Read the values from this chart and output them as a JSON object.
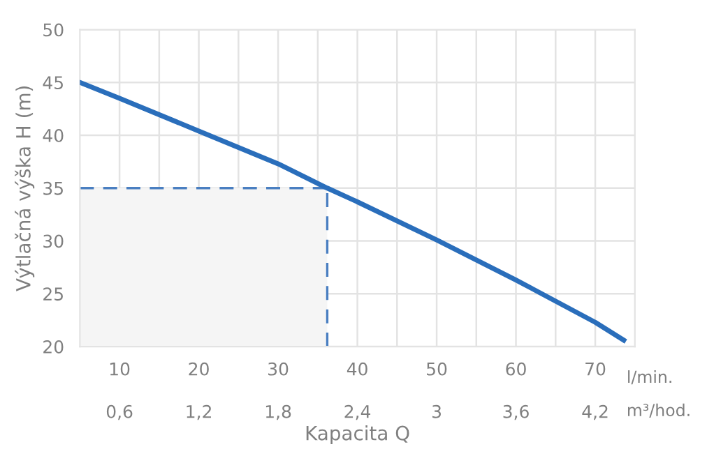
{
  "chart_data": {
    "type": "line",
    "xlabel": "Kapacita Q",
    "ylabel": "Výtlačná výška H (m)",
    "x": [
      5,
      10,
      20,
      30,
      36.2,
      40,
      50,
      60,
      70,
      73.6
    ],
    "series": [
      {
        "color": "#2a6ebb",
        "values": [
          45,
          43.5,
          40.4,
          37.3,
          35,
          33.7,
          30.1,
          26.3,
          22.3,
          20.6
        ]
      }
    ],
    "xlim": [
      5,
      75
    ],
    "xticks": [
      10,
      {
        "value": 15,
        "label": null
      },
      20,
      {
        "value": 25,
        "label": null
      },
      30,
      {
        "value": 35,
        "label": null
      },
      40,
      {
        "value": 45,
        "label": null
      },
      50,
      {
        "value": 55,
        "label": null
      },
      60,
      {
        "value": 65,
        "label": null
      },
      70
    ],
    "x2lim": [
      0.3,
      4.5
    ],
    "x2ticks": [
      {
        "value": 0.6,
        "label": "0,6"
      },
      {
        "value": 1.2,
        "label": "1,2"
      },
      {
        "value": 1.8,
        "label": "1,8"
      },
      {
        "value": 2.4,
        "label": "2,4"
      },
      3,
      {
        "value": 3.6,
        "label": "3,6"
      },
      {
        "value": 4.2,
        "label": "4,2"
      }
    ],
    "ylim": [
      20,
      50
    ],
    "yticks": [
      20,
      25,
      30,
      35,
      40,
      45,
      50
    ],
    "ref_lines": [
      {
        "axis": "y",
        "value": 35,
        "color": "#4a7fc1",
        "line_style": "dashed"
      },
      {
        "axis": "x",
        "value": 36.2,
        "color": "#4a7fc1",
        "line_style": "dashed"
      }
    ],
    "bands": [
      {
        "axis": "x",
        "from": 5,
        "to": 36.2,
        "color": "#f5f5f5"
      }
    ],
    "annotations": [
      "l/min.",
      "m³/hod."
    ],
    "grid": true,
    "marker": "none",
    "line_style": "solid",
    "legend": false
  }
}
